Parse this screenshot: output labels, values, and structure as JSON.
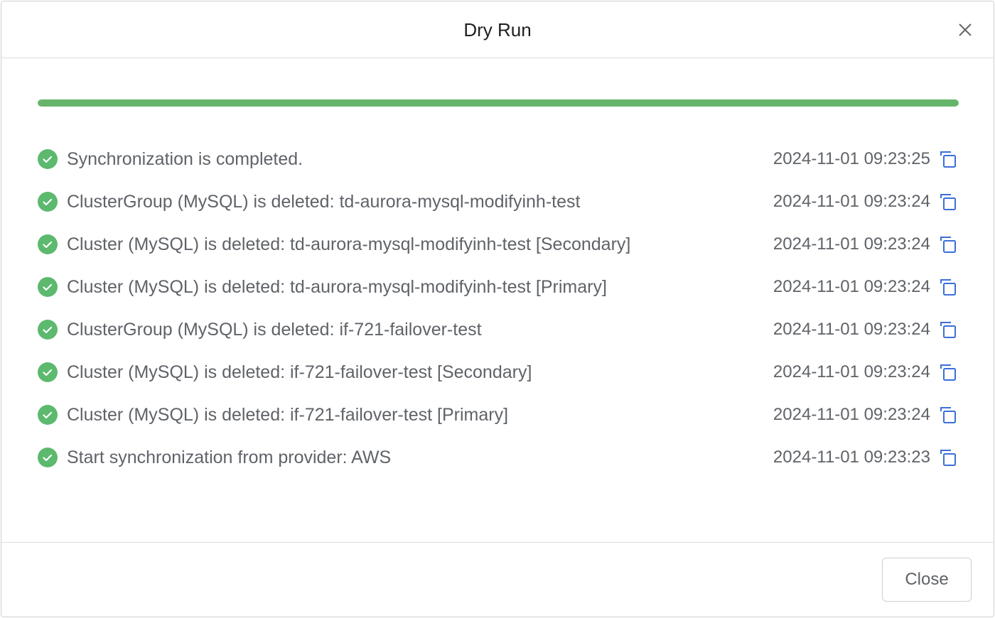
{
  "dialog": {
    "title": "Dry Run",
    "close_icon": "close-icon",
    "close_button_label": "Close"
  },
  "progress": {
    "percent": 100,
    "color": "#67b56b"
  },
  "colors": {
    "success": "#5cb96e",
    "copy": "#3b6fd9"
  },
  "log": [
    {
      "message": "Synchronization is completed.",
      "time": "2024-11-01 09:23:25"
    },
    {
      "message": "ClusterGroup (MySQL) is deleted: td-aurora-mysql-modifyinh-test",
      "time": "2024-11-01 09:23:24"
    },
    {
      "message": "Cluster (MySQL) is deleted: td-aurora-mysql-modifyinh-test [Secondary]",
      "time": "2024-11-01 09:23:24"
    },
    {
      "message": "Cluster (MySQL) is deleted: td-aurora-mysql-modifyinh-test [Primary]",
      "time": "2024-11-01 09:23:24"
    },
    {
      "message": "ClusterGroup (MySQL) is deleted: if-721-failover-test",
      "time": "2024-11-01 09:23:24"
    },
    {
      "message": "Cluster (MySQL) is deleted: if-721-failover-test [Secondary]",
      "time": "2024-11-01 09:23:24"
    },
    {
      "message": "Cluster (MySQL) is deleted: if-721-failover-test [Primary]",
      "time": "2024-11-01 09:23:24"
    },
    {
      "message": "Start synchronization from provider: AWS",
      "time": "2024-11-01 09:23:23"
    }
  ]
}
